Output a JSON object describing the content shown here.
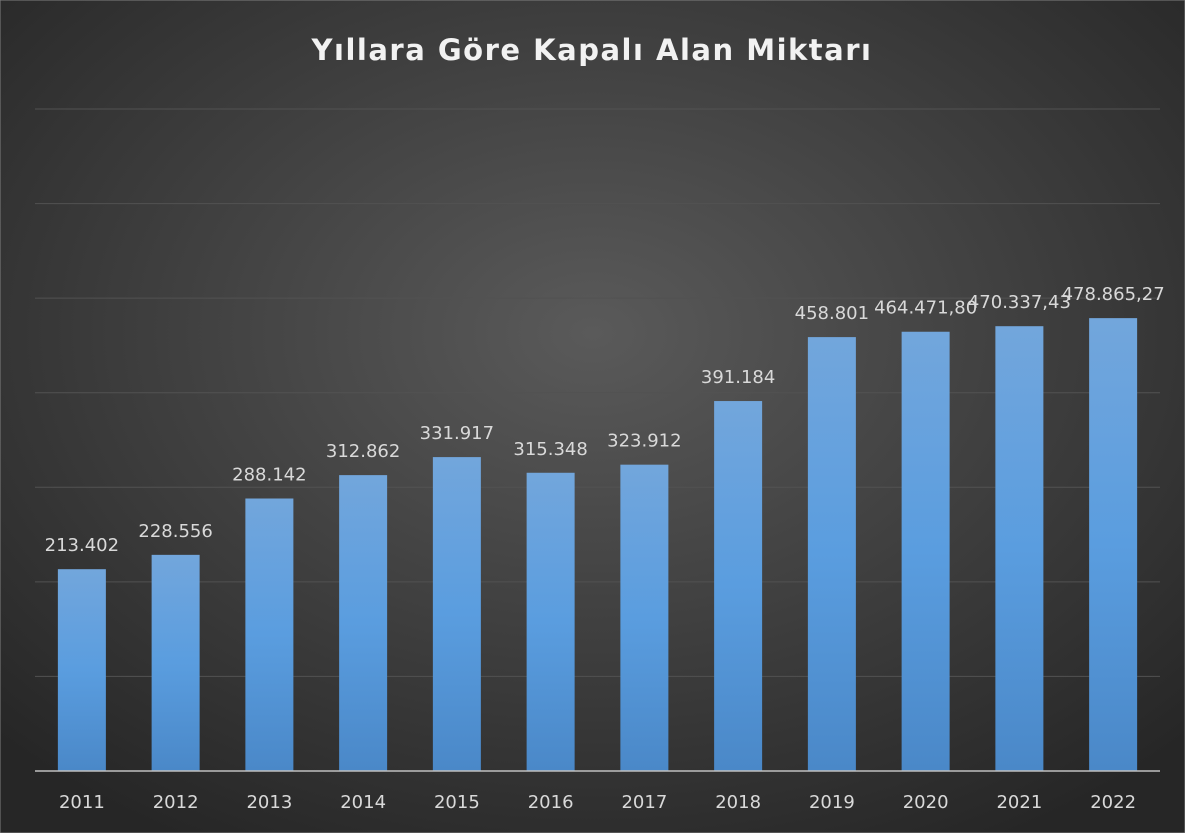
{
  "chart_data": {
    "type": "bar",
    "title": "Yıllara Göre Kapalı Alan Miktarı",
    "categories": [
      "2011",
      "2012",
      "2013",
      "2014",
      "2015",
      "2016",
      "2017",
      "2018",
      "2019",
      "2020",
      "2021",
      "2022"
    ],
    "values": [
      213402,
      228556,
      288142,
      312862,
      331917,
      315348,
      323912,
      391184,
      458801,
      464471.8,
      470337.43,
      478865.27
    ],
    "value_labels": [
      "213.402",
      "228.556",
      "288.142",
      "312.862",
      "331.917",
      "315.348",
      "323.912",
      "391.184",
      "458.801",
      "464.471,80",
      "470.337,43",
      "478.865,27"
    ],
    "color": "#5b9bd5",
    "ylim": [
      0,
      700000
    ],
    "yticks": [
      0,
      100000,
      200000,
      300000,
      400000,
      500000,
      600000,
      700000
    ],
    "grid": true
  }
}
